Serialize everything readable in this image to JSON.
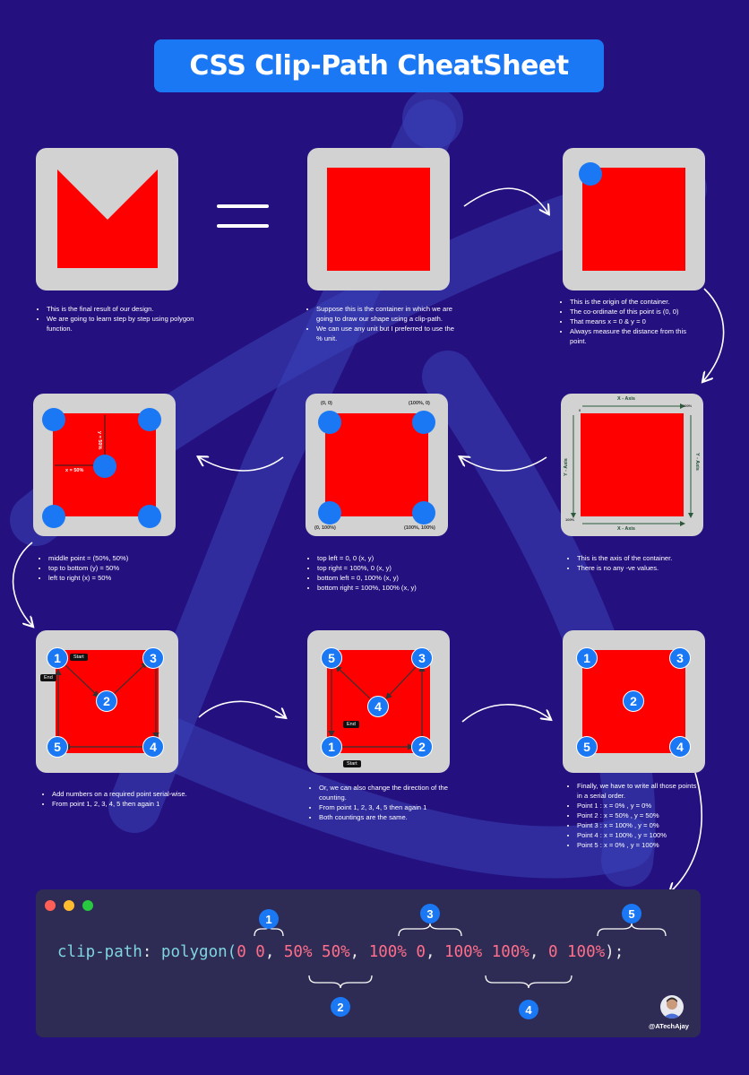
{
  "title": "CSS Clip-Path CheatSheet",
  "notes": {
    "step1": [
      "This is the final result of our design.",
      "We are going to learn step by step using polygon function."
    ],
    "step2": [
      "Suppose this is the container in which we are going to draw our shape using a clip-path.",
      "We can use any unit but I preferred to use the % unit."
    ],
    "step3": [
      "This is the origin of the container.",
      "The co-ordinate of this point is (0, 0)",
      "That means x = 0 & y = 0",
      "Always measure the distance from this point."
    ],
    "step4": [
      "This is the axis of the container.",
      "There is no any -ve values."
    ],
    "step5": [
      "top left = 0, 0 (x, y)",
      "top right = 100%, 0 (x, y)",
      "bottom left = 0, 100% (x, y)",
      "bottom right = 100%, 100% (x, y)"
    ],
    "step6": [
      "middle point = (50%, 50%)",
      "top to bottom (y) = 50%",
      "left to right (x) = 50%"
    ],
    "step7": [
      "Add numbers on a required point serial-wise.",
      "From point 1, 2, 3, 4, 5 then again 1"
    ],
    "step8": [
      "Or, we can also change the direction of the counting.",
      "From point 1, 2, 3, 4, 5 then again 1",
      "Both countings are the same."
    ],
    "step9": [
      "Finally, we have to write all those points in a serial order.",
      "Point 1 : x = 0% , y = 0%",
      "Point 2 : x = 50% , y = 50%",
      "Point 3 : x = 100% , y = 0%",
      "Point 4 : x = 100% , y = 100%",
      "Point 5 : x = 0% , y = 100%"
    ]
  },
  "corner_labels": {
    "tl": "(0, 0)",
    "tr": "(100%, 0)",
    "bl": "(0, 100%)",
    "br": "(100%, 100%)"
  },
  "axis_labels": {
    "x": "X - Axis",
    "y": "Y - Axis",
    "zero": "0",
    "hundred": "100%"
  },
  "middle_labels": {
    "x": "x = 50%",
    "y": "y = 50%"
  },
  "tags": {
    "start": "Start",
    "end": "End"
  },
  "point_numbers": [
    "1",
    "2",
    "3",
    "4",
    "5"
  ],
  "code": {
    "property": "clip-path",
    "colon": ": ",
    "func": "polygon(",
    "p1": "0 0",
    "p2": "50% 50%",
    "p3": "100% 0",
    "p4": "100% 100%",
    "p5": "0 100%",
    "sep": ", ",
    "close": ");"
  },
  "handle": "@ATechAjay",
  "colors": {
    "background": "#24107f",
    "accent": "#1a78f5",
    "shape": "#ff0000",
    "card": "#d2d2d2",
    "code_bg": "#2e2b54"
  }
}
